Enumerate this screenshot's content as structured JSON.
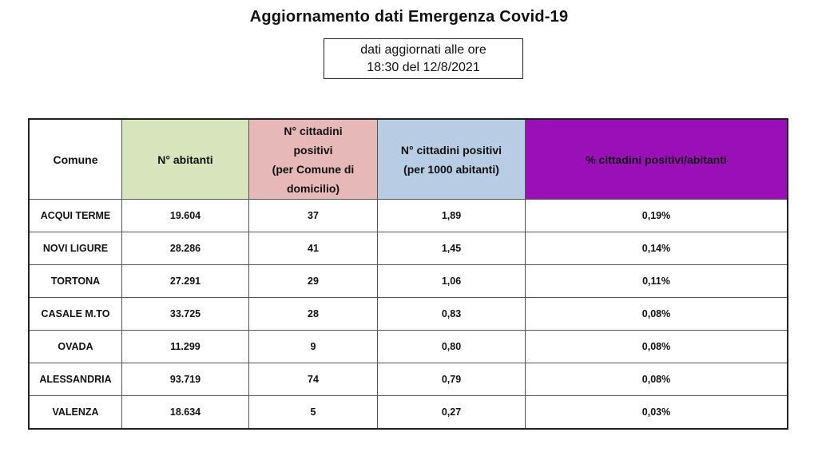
{
  "title": "Aggiornamento dati Emergenza Covid-19",
  "update": {
    "line1": "dati aggiornati alle ore",
    "line2": "18:30 del 12/8/2021"
  },
  "colors": {
    "abitanti_header": "#d8e4bc",
    "positivi_header": "#e6b8b7",
    "per1000_header": "#b8cce4",
    "perc_header": "#9b0fb8"
  },
  "table": {
    "headers": {
      "comune": "Comune",
      "abitanti": "N° abitanti",
      "positivi_lines": [
        "N° cittadini",
        "positivi",
        "(per Comune di",
        "domicilio)"
      ],
      "per1000_lines": [
        "N° cittadini positivi",
        "(per 1000 abitanti)"
      ],
      "perc": "% cittadini positivi/abitanti"
    },
    "rows": [
      {
        "comune": "ACQUI TERME",
        "abitanti": "19.604",
        "positivi": "37",
        "per1000": "1,89",
        "perc": "0,19%"
      },
      {
        "comune": "NOVI LIGURE",
        "abitanti": "28.286",
        "positivi": "41",
        "per1000": "1,45",
        "perc": "0,14%"
      },
      {
        "comune": "TORTONA",
        "abitanti": "27.291",
        "positivi": "29",
        "per1000": "1,06",
        "perc": "0,11%"
      },
      {
        "comune": "CASALE M.TO",
        "abitanti": "33.725",
        "positivi": "28",
        "per1000": "0,83",
        "perc": "0,08%"
      },
      {
        "comune": "OVADA",
        "abitanti": "11.299",
        "positivi": "9",
        "per1000": "0,80",
        "perc": "0,08%"
      },
      {
        "comune": "ALESSANDRIA",
        "abitanti": "93.719",
        "positivi": "74",
        "per1000": "0,79",
        "perc": "0,08%"
      },
      {
        "comune": "VALENZA",
        "abitanti": "18.634",
        "positivi": "5",
        "per1000": "0,27",
        "perc": "0,03%"
      }
    ]
  }
}
